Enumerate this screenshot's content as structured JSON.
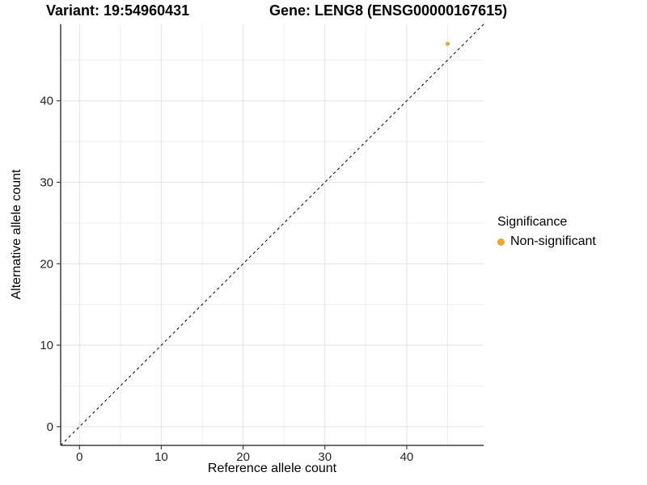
{
  "chart_data": {
    "type": "scatter",
    "titles": {
      "left": "Variant: 19:54960431",
      "right": "Gene: LENG8 (ENSG00000167615)"
    },
    "xlabel": "Reference allele count",
    "ylabel": "Alternative allele count",
    "xlim": [
      -2.3,
      49.4
    ],
    "ylim": [
      -2.3,
      49.4
    ],
    "major_ticks": [
      0,
      10,
      20,
      30,
      40
    ],
    "minor_gridlines": [
      5,
      15,
      25,
      35,
      45
    ],
    "grid": true,
    "reference_line": {
      "type": "identity",
      "style": "dashed",
      "color": "#000000"
    },
    "series": [
      {
        "name": "Non-significant",
        "color": "#F9A229",
        "marker": "circle",
        "points": [
          [
            45,
            47
          ]
        ]
      }
    ],
    "legend": {
      "title": "Significance",
      "position": "right",
      "items": [
        {
          "label": "Non-significant",
          "color": "#F9A229"
        }
      ]
    }
  },
  "style": {
    "background": "#ffffff",
    "grid_major_color": "#e2e2e2",
    "grid_minor_color": "#eeeeee",
    "axis_color": "#3f3f3f",
    "tick_label_color": "#262626",
    "text_color": "#000000"
  }
}
